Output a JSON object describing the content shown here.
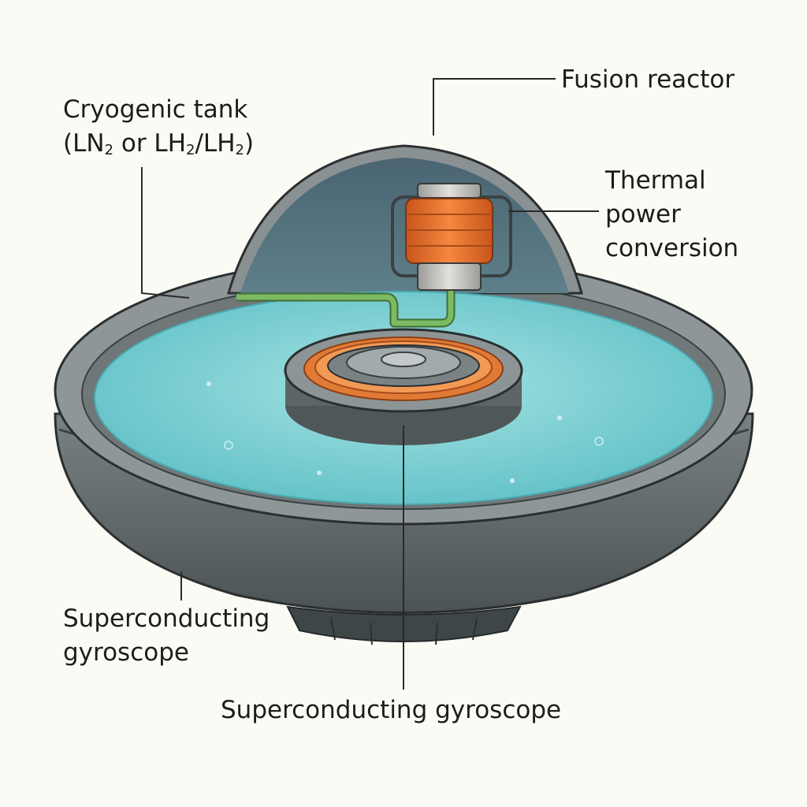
{
  "labels": {
    "fusion_reactor": "Fusion reactor",
    "cryogenic_tank_line1": "Cryogenic tank",
    "cryo_open_paren": "(LN",
    "cryo_sub1": "2",
    "cryo_or": " or LH",
    "cryo_sub2": "2",
    "cryo_slash": "/LH",
    "cryo_sub3": "2",
    "cryo_close_paren": ")",
    "thermal_line1": "Thermal",
    "thermal_line2": "power",
    "thermal_line3": "conversion",
    "gyro_left_line1": "Superconducting",
    "gyro_left_line2": "gyroscope",
    "gyro_bottom": "Superconducting gyroscope"
  },
  "colors": {
    "background": "#fbfbf5",
    "hull": "#6b7274",
    "hull_dark": "#4a5254",
    "dome_interior": "#4f6b78",
    "liquid": "#7fd0d3",
    "coil": "#e8702e",
    "pipe": "#6fa65a",
    "leader_line": "#2a2a2a"
  }
}
